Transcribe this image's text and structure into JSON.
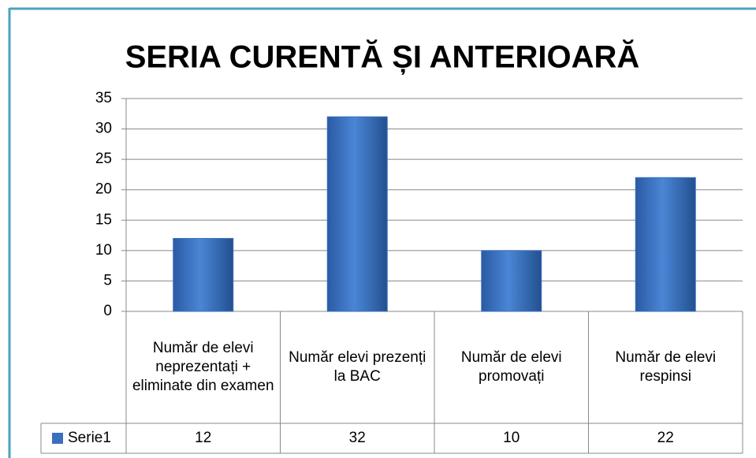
{
  "chart_data": {
    "type": "bar",
    "title": "SERIA CURENTĂ ȘI ANTERIOARĂ",
    "categories": [
      "Număr de elevi neprezentați + eliminate din examen",
      "Număr elevi prezenți la BAC",
      "Număr de elevi promovați",
      "Număr de elevi respinsi"
    ],
    "series": [
      {
        "name": "Serie1",
        "color": "#3a6fbf",
        "values": [
          12,
          32,
          10,
          22
        ]
      }
    ],
    "ylim": [
      0,
      35
    ],
    "yticks": [
      0,
      5,
      10,
      15,
      20,
      25,
      30,
      35
    ],
    "grid": true
  }
}
